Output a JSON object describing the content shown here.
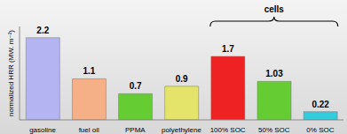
{
  "chart_data": {
    "type": "bar",
    "y_label": "normalized HRR (MW. m⁻²)",
    "categories": [
      "gasoline",
      "fuel oil",
      "PPMA",
      "polyethylene",
      "100% SOC",
      "50% SOC",
      "0% SOC"
    ],
    "values": [
      2.2,
      1.1,
      0.7,
      0.9,
      1.7,
      1.03,
      0.22
    ],
    "colors": [
      "#b4b4f2",
      "#f6b088",
      "#66cc33",
      "#e4e46a",
      "#ee2222",
      "#66cc33",
      "#33ccdd"
    ],
    "ylim": [
      0,
      2.5
    ],
    "data_labels": true,
    "tick_labels": "x",
    "grid": false,
    "annotations": [
      "cells"
    ]
  }
}
